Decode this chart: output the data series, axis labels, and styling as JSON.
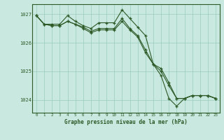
{
  "background_color": "#c8e8e0",
  "plot_bg_color": "#c8e8e0",
  "grid_color": "#99ccbb",
  "line_color": "#2d5a27",
  "marker_color": "#2d5a27",
  "xlabel": "Graphe pression niveau de la mer (hPa)",
  "ylim": [
    1023.55,
    1027.35
  ],
  "xlim": [
    -0.5,
    23.5
  ],
  "yticks": [
    1024,
    1025,
    1026,
    1027
  ],
  "xticks": [
    0,
    1,
    2,
    3,
    4,
    5,
    6,
    7,
    8,
    9,
    10,
    11,
    12,
    13,
    14,
    15,
    16,
    17,
    18,
    19,
    20,
    21,
    22,
    23
  ],
  "series1": [
    1026.95,
    1026.65,
    1026.65,
    1026.65,
    1026.95,
    1026.75,
    1026.6,
    1026.5,
    1026.7,
    1026.7,
    1026.7,
    1027.15,
    1026.85,
    1026.55,
    1026.25,
    1025.25,
    1024.85,
    1024.05,
    1023.78,
    1024.05,
    1024.15,
    1024.15,
    1024.15,
    1024.05
  ],
  "series2": [
    1026.95,
    1026.65,
    1026.6,
    1026.6,
    1026.75,
    1026.65,
    1026.55,
    1026.4,
    1026.5,
    1026.5,
    1026.5,
    1026.85,
    1026.5,
    1026.25,
    1025.75,
    1025.25,
    1025.1,
    1024.6,
    1024.05,
    1024.05,
    1024.15,
    1024.15,
    1024.15,
    1024.05
  ],
  "series3": [
    1026.95,
    1026.65,
    1026.6,
    1026.6,
    1026.75,
    1026.65,
    1026.5,
    1026.35,
    1026.45,
    1026.45,
    1026.45,
    1026.75,
    1026.45,
    1026.2,
    1025.65,
    1025.25,
    1025.0,
    1024.5,
    1024.05,
    1024.05,
    1024.15,
    1024.15,
    1024.15,
    1024.05
  ]
}
